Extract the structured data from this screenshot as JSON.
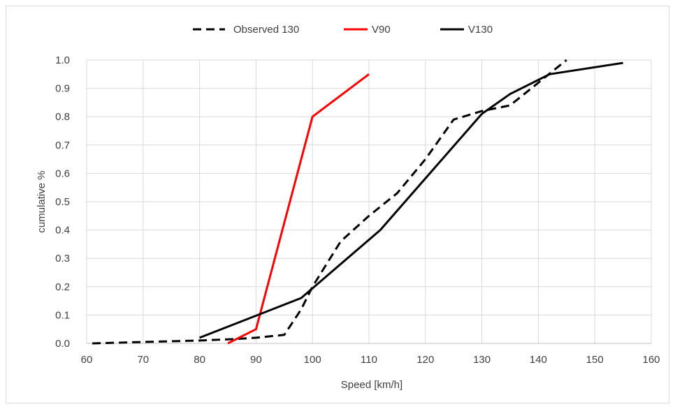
{
  "chart_data": {
    "type": "line",
    "title": "",
    "xlabel": "Speed [km/h]",
    "ylabel": "cumulative %",
    "xlim": [
      60,
      160
    ],
    "ylim": [
      0.0,
      1.0
    ],
    "xticks": [
      "60",
      "70",
      "80",
      "90",
      "100",
      "110",
      "120",
      "130",
      "140",
      "150",
      "160"
    ],
    "yticks": [
      "0.0",
      "0.1",
      "0.2",
      "0.3",
      "0.4",
      "0.5",
      "0.6",
      "0.7",
      "0.8",
      "0.9",
      "1.0"
    ],
    "grid": true,
    "legend_position": "top",
    "series": [
      {
        "name": "Observed 130",
        "color": "#000000",
        "dash": "dashed",
        "x": [
          61,
          70,
          80,
          86,
          90,
          95,
          98,
          100,
          105,
          110,
          115,
          120,
          125,
          130,
          135,
          140,
          145
        ],
        "y": [
          0.0,
          0.005,
          0.01,
          0.015,
          0.02,
          0.03,
          0.12,
          0.2,
          0.36,
          0.45,
          0.53,
          0.65,
          0.79,
          0.82,
          0.84,
          0.92,
          1.0
        ]
      },
      {
        "name": "V90",
        "color": "#ff0000",
        "dash": "solid",
        "x": [
          85,
          90,
          100,
          110
        ],
        "y": [
          0.0,
          0.05,
          0.8,
          0.95
        ]
      },
      {
        "name": "V130",
        "color": "#000000",
        "dash": "solid",
        "x": [
          80,
          98,
          112,
          130,
          135,
          142,
          155
        ],
        "y": [
          0.02,
          0.16,
          0.4,
          0.81,
          0.88,
          0.95,
          0.99
        ]
      }
    ]
  }
}
